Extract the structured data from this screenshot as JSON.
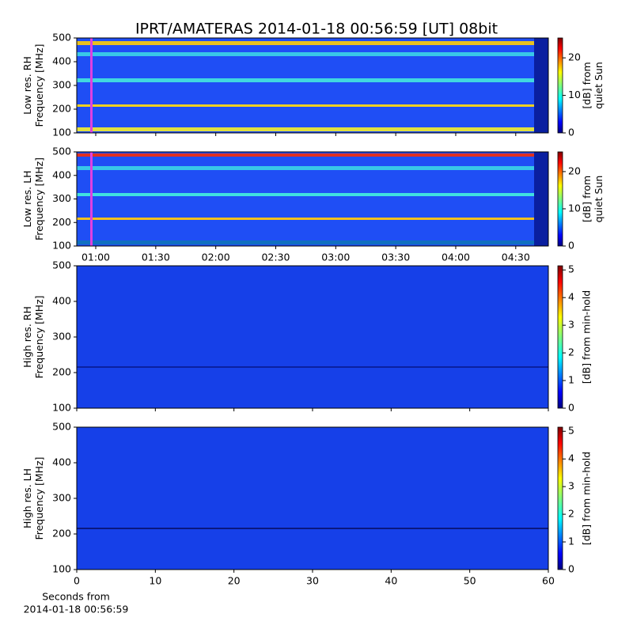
{
  "chart_data": [
    {
      "type": "heatmap",
      "title": "IPRT/AMATERAS 2014-01-18 00:56:59 [UT]   08bit",
      "ylabel": [
        "Low res. RH",
        "Frequency [MHz]"
      ],
      "ylim": [
        100,
        500
      ],
      "yticks": [
        100,
        200,
        300,
        400,
        500
      ],
      "xlim": [
        50.5,
        286.3
      ],
      "colorbar": {
        "label": [
          "[dB] from",
          "quiet Sun"
        ],
        "lim": [
          0,
          25.3
        ],
        "ticks": [
          0,
          10,
          20
        ]
      }
    },
    {
      "type": "heatmap",
      "ylabel": [
        "Low res. LH",
        "Frequency [MHz]"
      ],
      "ylim": [
        100,
        500
      ],
      "yticks": [
        100,
        200,
        300,
        400,
        500
      ],
      "xlim": [
        50.5,
        286.3
      ],
      "xticks": [
        {
          "value": 60,
          "label": "01:00"
        },
        {
          "value": 90,
          "label": "01:30"
        },
        {
          "value": 120,
          "label": "02:00"
        },
        {
          "value": 150,
          "label": "02:30"
        },
        {
          "value": 180,
          "label": "03:00"
        },
        {
          "value": 210,
          "label": "03:30"
        },
        {
          "value": 240,
          "label": "04:00"
        },
        {
          "value": 270,
          "label": "04:30"
        }
      ],
      "colorbar": {
        "label": [
          "[dB] from",
          "quiet Sun"
        ],
        "lim": [
          0,
          25.3
        ],
        "ticks": [
          0,
          10,
          20
        ]
      }
    },
    {
      "type": "heatmap",
      "ylabel": [
        "High res. RH",
        "Frequency [MHz]"
      ],
      "ylim": [
        100,
        500
      ],
      "yticks": [
        100,
        200,
        300,
        400,
        500
      ],
      "xlim": [
        0,
        60
      ],
      "colorbar": {
        "label": [
          "[dB] from min-hold"
        ],
        "lim": [
          0,
          5.15
        ],
        "ticks": [
          0,
          1,
          2,
          3,
          4,
          5
        ]
      }
    },
    {
      "type": "heatmap",
      "ylabel": [
        "High res. LH",
        "Frequency [MHz]"
      ],
      "ylim": [
        100,
        500
      ],
      "yticks": [
        100,
        200,
        300,
        400,
        500
      ],
      "xlim": [
        0,
        60
      ],
      "xticks": [
        0,
        10,
        20,
        30,
        40,
        50,
        60
      ],
      "xlabel": [
        "Seconds from",
        "2014-01-18 00:56:59"
      ],
      "colorbar": {
        "label": [
          "[dB] from min-hold"
        ],
        "lim": [
          0,
          5.15
        ],
        "ticks": [
          0,
          1,
          2,
          3,
          4,
          5
        ]
      }
    }
  ]
}
